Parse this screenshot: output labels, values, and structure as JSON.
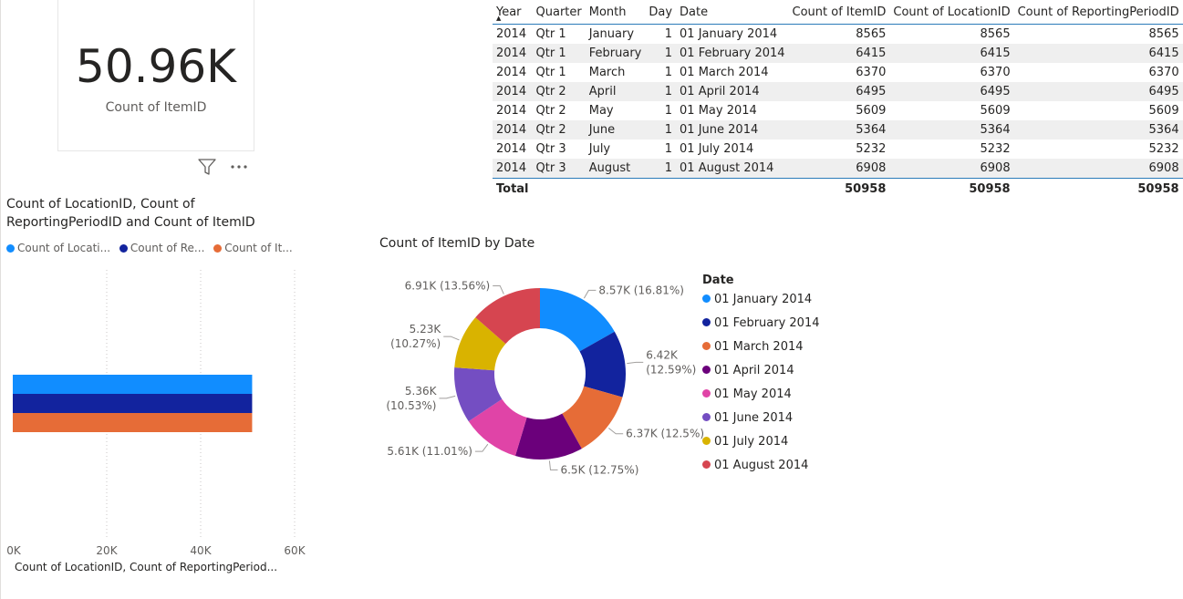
{
  "kpi": {
    "value": "50.96K",
    "label": "Count of ItemID"
  },
  "table": {
    "headers": [
      "Year",
      "Quarter",
      "Month",
      "Day",
      "Date",
      "Count of ItemID",
      "Count of LocationID",
      "Count of ReportingPeriodID"
    ],
    "rows": [
      [
        "2014",
        "Qtr 1",
        "January",
        "1",
        "01 January 2014",
        "8565",
        "8565",
        "8565"
      ],
      [
        "2014",
        "Qtr 1",
        "February",
        "1",
        "01 February 2014",
        "6415",
        "6415",
        "6415"
      ],
      [
        "2014",
        "Qtr 1",
        "March",
        "1",
        "01 March 2014",
        "6370",
        "6370",
        "6370"
      ],
      [
        "2014",
        "Qtr 2",
        "April",
        "1",
        "01 April 2014",
        "6495",
        "6495",
        "6495"
      ],
      [
        "2014",
        "Qtr 2",
        "May",
        "1",
        "01 May 2014",
        "5609",
        "5609",
        "5609"
      ],
      [
        "2014",
        "Qtr 2",
        "June",
        "1",
        "01 June 2014",
        "5364",
        "5364",
        "5364"
      ],
      [
        "2014",
        "Qtr 3",
        "July",
        "1",
        "01 July 2014",
        "5232",
        "5232",
        "5232"
      ],
      [
        "2014",
        "Qtr 3",
        "August",
        "1",
        "01 August 2014",
        "6908",
        "6908",
        "6908"
      ]
    ],
    "total_label": "Total",
    "totals": [
      "50958",
      "50958",
      "50958"
    ]
  },
  "chart_data": [
    {
      "type": "bar",
      "orientation": "horizontal",
      "title": "Count of LocationID, Count of ReportingPeriodID and Count of ItemID",
      "legend": [
        "Count of Locati...",
        "Count of Re...",
        "Count of It..."
      ],
      "series": [
        {
          "name": "Count of LocationID",
          "values": [
            50958
          ],
          "color": "#118DFF"
        },
        {
          "name": "Count of ReportingPeriodID",
          "values": [
            50958
          ],
          "color": "#12239E"
        },
        {
          "name": "Count of ItemID",
          "values": [
            50958
          ],
          "color": "#E66C37"
        }
      ],
      "xlim": [
        0,
        60000
      ],
      "xticks": [
        "0K",
        "20K",
        "40K",
        "60K"
      ],
      "xlabel": "Count of LocationID, Count of ReportingPeriod...",
      "grid": true
    },
    {
      "type": "pie",
      "donut": true,
      "title": "Count of ItemID by Date",
      "legend_title": "Date",
      "legend_placement": "right",
      "categories": [
        "01 January 2014",
        "01 February 2014",
        "01 March 2014",
        "01 April 2014",
        "01 May 2014",
        "01 June 2014",
        "01 July 2014",
        "01 August 2014"
      ],
      "values": [
        8565,
        6415,
        6370,
        6495,
        5609,
        5364,
        5232,
        6908
      ],
      "colors": [
        "#118DFF",
        "#12239E",
        "#E66C37",
        "#6B007B",
        "#E044A7",
        "#744EC2",
        "#D9B300",
        "#D64550"
      ],
      "data_labels": [
        [
          "8.57K (16.81%)"
        ],
        [
          "6.42K",
          "(12.59%)"
        ],
        [
          "6.37K (12.5%)"
        ],
        [
          "6.5K (12.75%)"
        ],
        [
          "5.61K (11.01%)"
        ],
        [
          "5.36K",
          "(10.53%)"
        ],
        [
          "5.23K",
          "(10.27%)"
        ],
        [
          "6.91K (13.56%)"
        ]
      ]
    }
  ]
}
